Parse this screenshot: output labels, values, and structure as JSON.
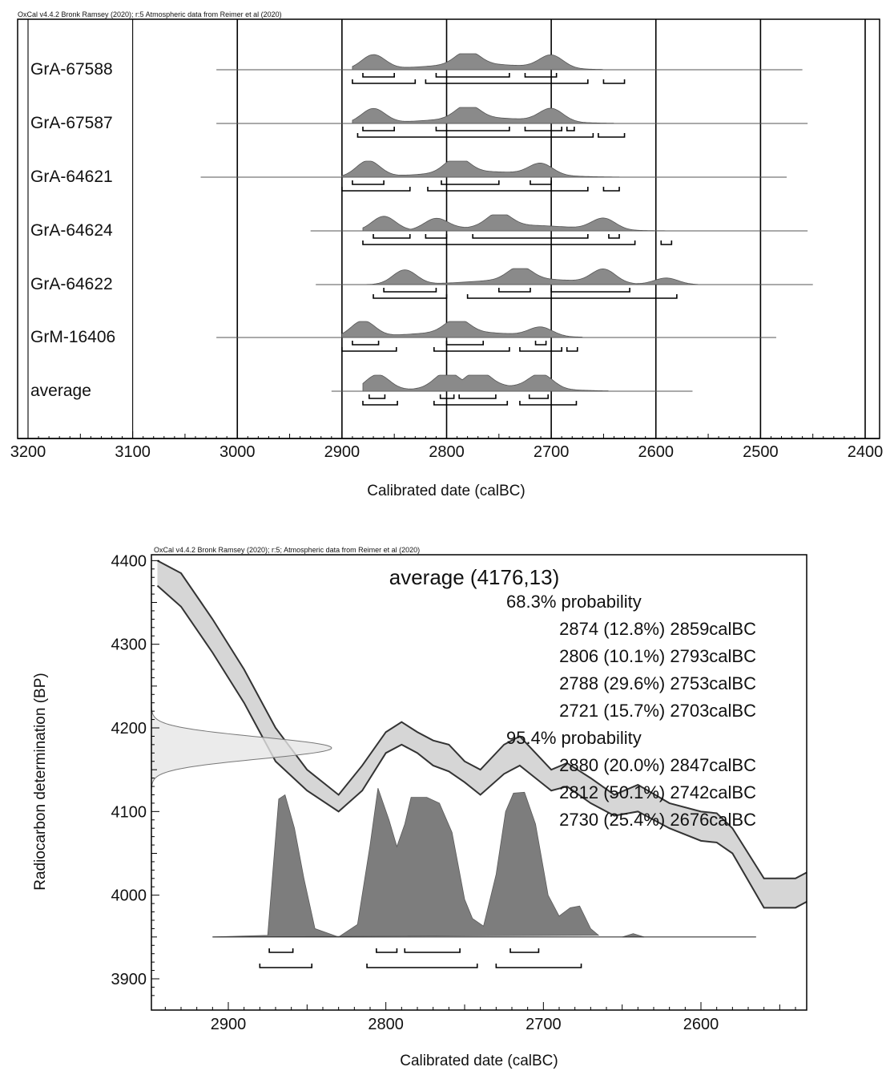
{
  "chart_data": [
    {
      "type": "area",
      "credit": "OxCal v4.4.2 Bronk Ramsey (2020); r:5 Atmospheric data from Reimer et al (2020)",
      "xlabel": "Calibrated date (calBC)",
      "xlim": [
        3200,
        2400
      ],
      "x_ticks": [
        "3200",
        "3100",
        "3000",
        "2900",
        "2800",
        "2700",
        "2600",
        "2500",
        "2400"
      ],
      "series": [
        {
          "name": "GrA-67588",
          "tail": [
            3020,
            2460
          ],
          "peaks": [
            [
              2870,
              0.9
            ],
            [
              2780,
              0.85
            ],
            [
              2700,
              0.8
            ]
          ],
          "extent": [
            2890,
            2650
          ],
          "range_68": [
            [
              2880,
              2850
            ],
            [
              2810,
              2740
            ],
            [
              2725,
              2695
            ]
          ],
          "range_95": [
            [
              2890,
              2830
            ],
            [
              2820,
              2665
            ],
            [
              2650,
              2630
            ]
          ]
        },
        {
          "name": "GrA-67587",
          "tail": [
            3020,
            2455
          ],
          "peaks": [
            [
              2870,
              0.9
            ],
            [
              2780,
              0.85
            ],
            [
              2700,
              0.8
            ]
          ],
          "extent": [
            2890,
            2640
          ],
          "range_68": [
            [
              2880,
              2850
            ],
            [
              2810,
              2740
            ],
            [
              2725,
              2690
            ],
            [
              2685,
              2678
            ]
          ],
          "range_95": [
            [
              2885,
              2660
            ],
            [
              2655,
              2630
            ]
          ]
        },
        {
          "name": "GrA-64621",
          "tail": [
            3035,
            2475
          ],
          "peaks": [
            [
              2875,
              1.0
            ],
            [
              2790,
              0.95
            ],
            [
              2710,
              0.7
            ]
          ],
          "extent": [
            2900,
            2635
          ],
          "range_68": [
            [
              2890,
              2860
            ],
            [
              2805,
              2750
            ],
            [
              2720,
              2700
            ]
          ],
          "range_95": [
            [
              2900,
              2835
            ],
            [
              2818,
              2665
            ],
            [
              2650,
              2635
            ]
          ]
        },
        {
          "name": "GrA-64624",
          "tail": [
            2930,
            2455
          ],
          "peaks": [
            [
              2860,
              0.9
            ],
            [
              2810,
              0.7
            ],
            [
              2750,
              0.85
            ],
            [
              2650,
              0.7
            ]
          ],
          "extent": [
            2880,
            2575
          ],
          "range_68": [
            [
              2870,
              2835
            ],
            [
              2820,
              2800
            ],
            [
              2775,
              2665
            ],
            [
              2645,
              2635
            ]
          ],
          "range_95": [
            [
              2880,
              2620
            ],
            [
              2595,
              2585
            ]
          ]
        },
        {
          "name": "GrA-64622",
          "tail": [
            2925,
            2450
          ],
          "peaks": [
            [
              2840,
              0.9
            ],
            [
              2730,
              0.8
            ],
            [
              2650,
              0.85
            ],
            [
              2590,
              0.4
            ]
          ],
          "extent": [
            2880,
            2560
          ],
          "range_68": [
            [
              2860,
              2810
            ],
            [
              2750,
              2720
            ],
            [
              2700,
              2625
            ]
          ],
          "range_95": [
            [
              2870,
              2800
            ],
            [
              2780,
              2580
            ]
          ]
        },
        {
          "name": "GrM-16406",
          "tail": [
            3020,
            2485
          ],
          "peaks": [
            [
              2880,
              1.0
            ],
            [
              2790,
              0.85
            ],
            [
              2710,
              0.55
            ]
          ],
          "extent": [
            2900,
            2670
          ],
          "range_68": [
            [
              2890,
              2865
            ],
            [
              2800,
              2765
            ],
            [
              2715,
              2705
            ]
          ],
          "range_95": [
            [
              2900,
              2848
            ],
            [
              2812,
              2740
            ],
            [
              2730,
              2690
            ],
            [
              2685,
              2675
            ]
          ]
        },
        {
          "name": "average",
          "tail": [
            2910,
            2565
          ],
          "peaks": [
            [
              2866,
              1.0
            ],
            [
              2800,
              0.95
            ],
            [
              2770,
              0.95
            ],
            [
              2710,
              0.9
            ]
          ],
          "extent": [
            2880,
            2645
          ],
          "range_68": [
            [
              2874,
              2859
            ],
            [
              2806,
              2793
            ],
            [
              2788,
              2753
            ],
            [
              2721,
              2703
            ]
          ],
          "range_95": [
            [
              2880,
              2847
            ],
            [
              2812,
              2742
            ],
            [
              2730,
              2676
            ]
          ]
        }
      ]
    },
    {
      "type": "area",
      "credit": "OxCal v4.4.2 Bronk Ramsey (2020); r:5; Atmospheric data from Reimer et al (2020)",
      "title": "average (4176,13)",
      "xlabel": "Calibrated date (calBC)",
      "ylabel": "Radiocarbon determination (BP)",
      "xlim": [
        2945,
        2530
      ],
      "ylim": [
        3875,
        4405
      ],
      "x_ticks": [
        "2900",
        "2800",
        "2700",
        "2600"
      ],
      "y_ticks": [
        "4400",
        "4300",
        "4200",
        "4100",
        "4000",
        "3900"
      ],
      "probability_68_label": "68.3% probability",
      "probability_68": [
        "2874 (12.8%) 2859calBC",
        "2806 (10.1%) 2793calBC",
        "2788 (29.6%) 2753calBC",
        "2721 (15.7%) 2703calBC"
      ],
      "probability_95_label": "95.4% probability",
      "probability_95": [
        "2880 (20.0%) 2847calBC",
        "2812 (50.1%) 2742calBC",
        "2730 (25.4%) 2676calBC"
      ],
      "curve_x": [
        2945,
        2930,
        2910,
        2890,
        2870,
        2850,
        2830,
        2815,
        2800,
        2790,
        2780,
        2770,
        2760,
        2750,
        2740,
        2725,
        2715,
        2705,
        2695,
        2685,
        2670,
        2655,
        2640,
        2620,
        2600,
        2590,
        2580,
        2560,
        2540,
        2530
      ],
      "curve_upper": [
        4400,
        4385,
        4330,
        4270,
        4200,
        4150,
        4120,
        4155,
        4195,
        4207,
        4195,
        4185,
        4180,
        4160,
        4150,
        4180,
        4190,
        4170,
        4150,
        4158,
        4140,
        4120,
        4132,
        4110,
        4100,
        4098,
        4080,
        4020,
        4020,
        4030
      ],
      "curve_lower": [
        4370,
        4345,
        4290,
        4230,
        4160,
        4125,
        4100,
        4125,
        4170,
        4180,
        4170,
        4155,
        4148,
        4135,
        4120,
        4145,
        4155,
        4140,
        4125,
        4130,
        4110,
        4095,
        4100,
        4080,
        4065,
        4063,
        4050,
        3985,
        3985,
        3995
      ],
      "measurement": {
        "mean": 4176,
        "sigma": 13
      },
      "posterior_baseline": 3950,
      "posterior_extent": [
        2910,
        2565
      ],
      "posterior": [
        [
          2875,
          3952
        ],
        [
          2868,
          4115
        ],
        [
          2864,
          4120
        ],
        [
          2858,
          4080
        ],
        [
          2852,
          4020
        ],
        [
          2845,
          3960
        ],
        [
          2830,
          3950
        ],
        [
          2818,
          3965
        ],
        [
          2810,
          4060
        ],
        [
          2805,
          4128
        ],
        [
          2798,
          4090
        ],
        [
          2793,
          4058
        ],
        [
          2788,
          4085
        ],
        [
          2784,
          4117
        ],
        [
          2774,
          4117
        ],
        [
          2766,
          4110
        ],
        [
          2758,
          4075
        ],
        [
          2750,
          3995
        ],
        [
          2745,
          3972
        ],
        [
          2738,
          3963
        ],
        [
          2730,
          4025
        ],
        [
          2724,
          4100
        ],
        [
          2719,
          4122
        ],
        [
          2712,
          4123
        ],
        [
          2705,
          4085
        ],
        [
          2697,
          4000
        ],
        [
          2690,
          3975
        ],
        [
          2683,
          3985
        ],
        [
          2677,
          3987
        ],
        [
          2670,
          3960
        ],
        [
          2665,
          3952
        ]
      ],
      "posterior_tail_bump": [
        [
          2650,
          3950
        ],
        [
          2643,
          3954
        ],
        [
          2636,
          3950
        ]
      ],
      "range_68": [
        [
          2874,
          2859
        ],
        [
          2806,
          2793
        ],
        [
          2788,
          2753
        ],
        [
          2721,
          2703
        ]
      ],
      "range_95": [
        [
          2880,
          2847
        ],
        [
          2812,
          2742
        ],
        [
          2730,
          2676
        ]
      ]
    }
  ]
}
